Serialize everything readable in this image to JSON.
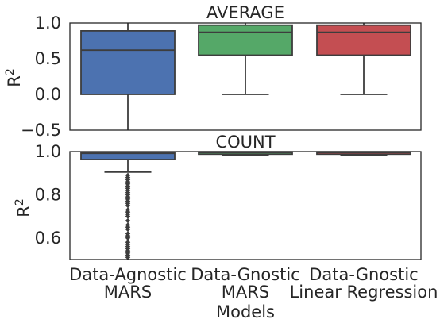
{
  "chart_data": [
    {
      "type": "box",
      "title": "AVERAGE",
      "ylabel": "R²",
      "ylim": [
        -0.5,
        1.0
      ],
      "yticks": [
        "1.0",
        "0.5",
        "0.0",
        "−0.5"
      ],
      "yticks_num": [
        1.0,
        0.5,
        0.0,
        -0.5
      ],
      "categories": [
        "Data-Agnostic\nMARS",
        "Data-Gnostic\nMARS",
        "Data-Gnostic\nLinear Regression"
      ],
      "boxes": [
        {
          "color": "#4c72b0",
          "whislo": -0.5,
          "q1": 0.0,
          "med": 0.62,
          "q3": 0.89,
          "whishi": 1.0,
          "fliers": []
        },
        {
          "color": "#55a868",
          "whislo": 0.0,
          "q1": 0.55,
          "med": 0.87,
          "q3": 0.97,
          "whishi": 1.0,
          "fliers": []
        },
        {
          "color": "#c44e52",
          "whislo": 0.0,
          "q1": 0.55,
          "med": 0.87,
          "q3": 0.97,
          "whishi": 1.0,
          "fliers": []
        }
      ]
    },
    {
      "type": "box",
      "title": "COUNT",
      "ylabel": "R²",
      "ylim": [
        0.5,
        1.0
      ],
      "yticks": [
        "1.0",
        "0.8",
        "0.6"
      ],
      "yticks_num": [
        1.0,
        0.8,
        0.6
      ],
      "xlabel": "Models",
      "categories": [
        "Data-Agnostic\nMARS",
        "Data-Gnostic\nMARS",
        "Data-Gnostic\nLinear Regression"
      ],
      "boxes": [
        {
          "color": "#4c72b0",
          "whislo": 0.905,
          "q1": 0.963,
          "med": 0.992,
          "q3": 0.998,
          "whishi": 1.0,
          "fliers": [
            0.51,
            0.52,
            0.53,
            0.54,
            0.55,
            0.56,
            0.57,
            0.58,
            0.6,
            0.61,
            0.62,
            0.64,
            0.65,
            0.66,
            0.68,
            0.7,
            0.71,
            0.72,
            0.73,
            0.75,
            0.76,
            0.77,
            0.78,
            0.79,
            0.8,
            0.81,
            0.82,
            0.83,
            0.84,
            0.85,
            0.86,
            0.87,
            0.88,
            0.89
          ]
        },
        {
          "color": "#55a868",
          "whislo": 0.982,
          "q1": 0.988,
          "med": 0.996,
          "q3": 0.999,
          "whishi": 1.0,
          "fliers": []
        },
        {
          "color": "#c44e52",
          "whislo": 0.982,
          "q1": 0.988,
          "med": 0.996,
          "q3": 0.999,
          "whishi": 1.0,
          "fliers": []
        }
      ]
    }
  ]
}
